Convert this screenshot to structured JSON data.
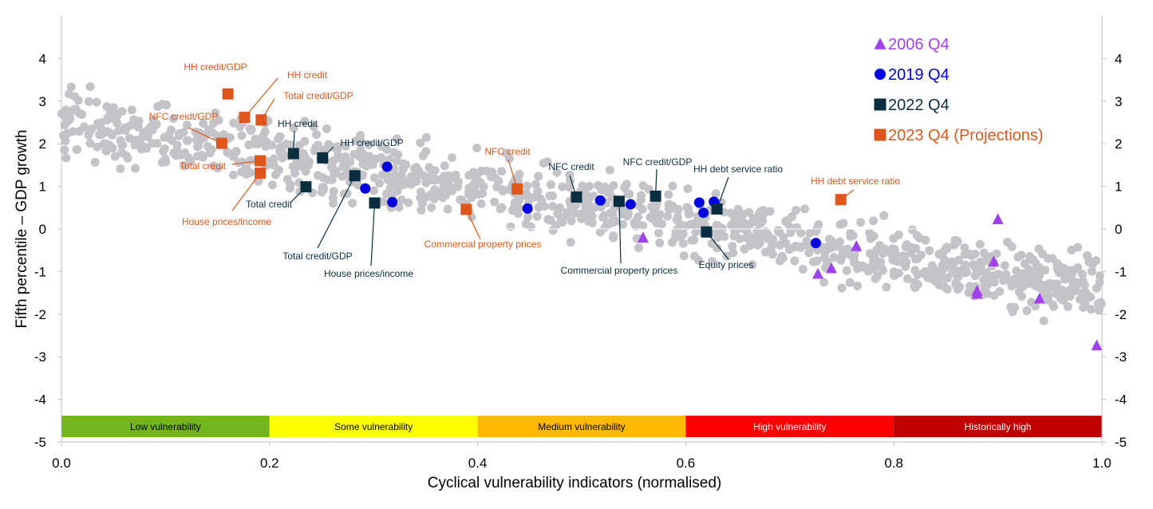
{
  "chart_data": {
    "type": "scatter",
    "xlabel": "Cyclical vulnerability indicators (normalised)",
    "ylabel": "Fifth percentile – GDP growth",
    "xlim": [
      0,
      1
    ],
    "ylim": [
      -5,
      5
    ],
    "x_ticks": [
      "0.0",
      "0.2",
      "0.4",
      "0.6",
      "0.8",
      "1.0"
    ],
    "y_ticks": [
      "4",
      "3",
      "2",
      "1",
      "0",
      "-1",
      "-2",
      "-3",
      "-4",
      "-5"
    ],
    "grid": false,
    "legend_position": "top-right",
    "colors": {
      "background_points": "#c3c3c8",
      "s2006": "#a040f0",
      "s2019": "#0000e0",
      "s2022": "#0b2d40",
      "s2023": "#e0561a"
    },
    "vulnerability_bands": [
      {
        "label": "Low vulnerability",
        "from": 0.0,
        "to": 0.2,
        "color": "#72b51f",
        "text_color": "#000000"
      },
      {
        "label": "Some vulnerability",
        "from": 0.2,
        "to": 0.4,
        "color": "#ffff00",
        "text_color": "#000000"
      },
      {
        "label": "Medium vulnerability",
        "from": 0.4,
        "to": 0.6,
        "color": "#ffb900",
        "text_color": "#000000"
      },
      {
        "label": "High vulnerability",
        "from": 0.6,
        "to": 0.8,
        "color": "#ff0000",
        "text_color": "#ffffff"
      },
      {
        "label": "Historically high",
        "from": 0.8,
        "to": 1.0,
        "color": "#c00000",
        "text_color": "#ffffff"
      }
    ],
    "background_cloud": {
      "trend_start": [
        0.0,
        2.5
      ],
      "trend_end": [
        1.0,
        -1.4
      ],
      "spread": 0.55,
      "count": 1100
    },
    "series": [
      {
        "name": "2006 Q4",
        "marker": "triangle",
        "color": "#a040f0",
        "points": [
          [
            0.559,
            -0.2
          ],
          [
            0.727,
            -1.05
          ],
          [
            0.74,
            -0.92
          ],
          [
            0.764,
            -0.4
          ],
          [
            0.88,
            -1.45
          ],
          [
            0.88,
            -1.52
          ],
          [
            0.896,
            -0.76
          ],
          [
            0.9,
            0.23
          ],
          [
            0.94,
            -1.63
          ],
          [
            0.995,
            -2.73
          ]
        ]
      },
      {
        "name": "2019 Q4",
        "marker": "circle",
        "color": "#0000e0",
        "points": [
          [
            0.292,
            0.95
          ],
          [
            0.313,
            1.46
          ],
          [
            0.318,
            0.63
          ],
          [
            0.448,
            0.48
          ],
          [
            0.518,
            0.67
          ],
          [
            0.547,
            0.58
          ],
          [
            0.613,
            0.62
          ],
          [
            0.617,
            0.38
          ],
          [
            0.627,
            0.64
          ],
          [
            0.725,
            -0.33
          ]
        ]
      },
      {
        "name": "2022 Q4",
        "marker": "square",
        "color": "#0b2d40",
        "points": [
          [
            0.223,
            1.77
          ],
          [
            0.251,
            1.67
          ],
          [
            0.235,
            0.99
          ],
          [
            0.282,
            1.25
          ],
          [
            0.301,
            0.61
          ],
          [
            0.495,
            0.75
          ],
          [
            0.536,
            0.65
          ],
          [
            0.571,
            0.77
          ],
          [
            0.63,
            0.47
          ],
          [
            0.62,
            -0.07
          ]
        ]
      },
      {
        "name": "2023 Q4 (Projections)",
        "marker": "square",
        "color": "#e0561a",
        "points": [
          [
            0.16,
            3.17
          ],
          [
            0.176,
            2.62
          ],
          [
            0.192,
            2.56
          ],
          [
            0.154,
            2.01
          ],
          [
            0.191,
            1.6
          ],
          [
            0.191,
            1.31
          ],
          [
            0.389,
            0.46
          ],
          [
            0.438,
            0.94
          ],
          [
            0.749,
            0.69
          ]
        ]
      }
    ],
    "annotations": [
      {
        "text": "HH credit/GDP",
        "color": "#e0561a",
        "series": "2023 Q4 (Projections)",
        "point": 0
      },
      {
        "text": "HH credit",
        "color": "#e0561a",
        "series": "2023 Q4 (Projections)",
        "point": 1
      },
      {
        "text": "Total credit/GDP",
        "color": "#e0561a",
        "series": "2023 Q4 (Projections)",
        "point": 2
      },
      {
        "text": "NFC creidt/GDP",
        "color": "#e0561a",
        "series": "2023 Q4 (Projections)",
        "point": 3
      },
      {
        "text": "Total credit",
        "color": "#e0561a",
        "series": "2023 Q4 (Projections)",
        "point": 4
      },
      {
        "text": "House prices/income",
        "color": "#e0561a",
        "series": "2023 Q4 (Projections)",
        "point": 5
      },
      {
        "text": "Commercial property prices",
        "color": "#e0561a",
        "series": "2023 Q4 (Projections)",
        "point": 6
      },
      {
        "text": "NFC credit",
        "color": "#e0561a",
        "series": "2023 Q4 (Projections)",
        "point": 7
      },
      {
        "text": "HH debt service ratio",
        "color": "#e0561a",
        "series": "2023 Q4 (Projections)",
        "point": 8
      },
      {
        "text": "HH credit",
        "color": "#0b2d40",
        "series": "2022 Q4",
        "point": 0
      },
      {
        "text": "HH credit/GDP",
        "color": "#0b2d40",
        "series": "2022 Q4",
        "point": 1
      },
      {
        "text": "Total credit",
        "color": "#0b2d40",
        "series": "2022 Q4",
        "point": 2
      },
      {
        "text": "Total credit/GDP",
        "color": "#0b2d40",
        "series": "2022 Q4",
        "point": 3
      },
      {
        "text": "House prices/income",
        "color": "#0b2d40",
        "series": "2022 Q4",
        "point": 4
      },
      {
        "text": "NFC credit",
        "color": "#0b2d40",
        "series": "2022 Q4",
        "point": 5
      },
      {
        "text": "Commercial property prices",
        "color": "#0b2d40",
        "series": "2022 Q4",
        "point": 6
      },
      {
        "text": "NFC credit/GDP",
        "color": "#0b2d40",
        "series": "2022 Q4",
        "point": 7
      },
      {
        "text": "HH debt service ratio",
        "color": "#0b2d40",
        "series": "2022 Q4",
        "point": 8
      },
      {
        "text": "Equity prices",
        "color": "#0b2d40",
        "series": "2022 Q4",
        "point": 9
      }
    ]
  }
}
